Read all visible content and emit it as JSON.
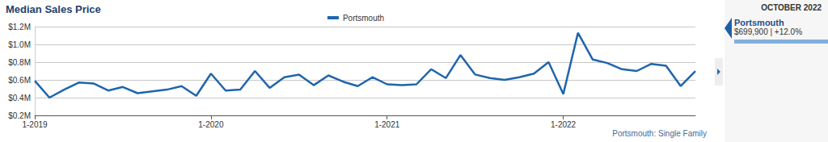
{
  "chart_data": {
    "type": "line",
    "title": "Median Sales Price",
    "categories": [
      "1-2019",
      null,
      null,
      null,
      null,
      null,
      null,
      null,
      null,
      null,
      null,
      null,
      "1-2020",
      null,
      null,
      null,
      null,
      null,
      null,
      null,
      null,
      null,
      null,
      null,
      "1-2021",
      null,
      null,
      null,
      null,
      null,
      null,
      null,
      null,
      null,
      null,
      null,
      "1-2022",
      null,
      null,
      null,
      null,
      null,
      null,
      null,
      null,
      null
    ],
    "series": [
      {
        "name": "Portsmouth",
        "color": "#1f65ad",
        "values": [
          590000,
          400000,
          490000,
          570000,
          560000,
          480000,
          520000,
          450000,
          470000,
          490000,
          530000,
          420000,
          670000,
          480000,
          490000,
          700000,
          510000,
          630000,
          660000,
          540000,
          650000,
          580000,
          530000,
          630000,
          550000,
          540000,
          550000,
          720000,
          620000,
          880000,
          660000,
          620000,
          600000,
          630000,
          670000,
          800000,
          440000,
          1130000,
          830000,
          790000,
          720000,
          700000,
          780000,
          760000,
          530000,
          699900
        ]
      }
    ],
    "ylim": [
      200000,
      1200000
    ],
    "yticks": [
      {
        "value": 200000,
        "label": "$0.2M"
      },
      {
        "value": 400000,
        "label": "$0.4M"
      },
      {
        "value": 600000,
        "label": "$0.6M"
      },
      {
        "value": 800000,
        "label": "$0.8M"
      },
      {
        "value": 1000000,
        "label": "$1.0M"
      },
      {
        "value": 1200000,
        "label": "$1.2M"
      }
    ],
    "grid": true,
    "legend": "top",
    "footnote": "Portsmouth: Single Family",
    "callout": {
      "header": "OCTOBER 2022",
      "name": "Portsmouth",
      "text": "$699,900 | +12.0%"
    }
  }
}
